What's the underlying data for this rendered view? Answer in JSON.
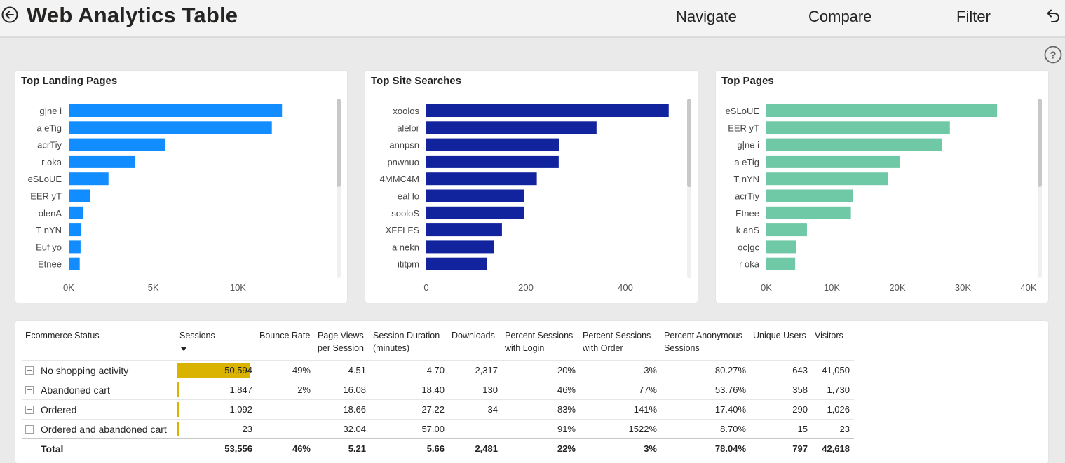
{
  "header": {
    "title": "Web Analytics Table",
    "nav": [
      "Navigate",
      "Compare",
      "Filter"
    ]
  },
  "colors": {
    "landing": "#118dff",
    "searches": "#12239e",
    "pages": "#6fc8a6",
    "sessions_bar": "#d9b300"
  },
  "chart_data": [
    {
      "type": "bar",
      "orientation": "horizontal",
      "title": "Top Landing Pages",
      "categories": [
        "g|ne i",
        "a eTig",
        "acrTiy",
        "r oka",
        "eSLoUE",
        "EER yT",
        "olenA",
        "T nYN",
        "Euf yo",
        "Etnee"
      ],
      "values": [
        12600,
        12000,
        5700,
        3900,
        2350,
        1250,
        850,
        750,
        700,
        650
      ],
      "xlim": [
        0,
        14000
      ],
      "xticks": [
        0,
        5000,
        10000
      ],
      "xtick_labels": [
        "0K",
        "5K",
        "10K"
      ]
    },
    {
      "type": "bar",
      "orientation": "horizontal",
      "title": "Top Site Searches",
      "categories": [
        "xoolos",
        "alelor",
        "annpsn",
        "pnwnuo",
        "4MMC4M",
        "eal lo",
        "sooloS",
        "XFFLFS",
        "a nekn",
        "ititpm"
      ],
      "values": [
        487,
        342,
        267,
        266,
        222,
        197,
        197,
        152,
        136,
        122
      ],
      "xlim": [
        0,
        500
      ],
      "xticks": [
        0,
        200,
        400
      ],
      "xtick_labels": [
        "0",
        "200",
        "400"
      ]
    },
    {
      "type": "bar",
      "orientation": "horizontal",
      "title": "Top Pages",
      "categories": [
        "eSLoUE",
        "EER yT",
        "g|ne i",
        "a eTig",
        "T nYN",
        "acrTiy",
        "Etnee",
        "k anS",
        "oc|gc",
        "r oka"
      ],
      "values": [
        35200,
        28000,
        26800,
        20400,
        18500,
        13200,
        12900,
        6200,
        4600,
        4400
      ],
      "xlim": [
        0,
        40000
      ],
      "xticks": [
        0,
        10000,
        20000,
        30000,
        40000
      ],
      "xtick_labels": [
        "0K",
        "10K",
        "20K",
        "30K",
        "40K"
      ]
    }
  ],
  "table": {
    "headers": [
      "Ecommerce Status",
      "Sessions",
      "Bounce Rate",
      "Page Views per Session",
      "Session Duration (minutes)",
      "Downloads",
      "Percent Sessions with Login",
      "Percent Sessions with Order",
      "Percent Anonymous Sessions",
      "Unique Users",
      "Visitors"
    ],
    "sessions_max": 50594,
    "rows": [
      {
        "name": "No shopping activity",
        "sessions": "50,594",
        "sessions_n": 50594,
        "bounce": "49%",
        "pv": "4.51",
        "dur": "4.70",
        "dl": "2,317",
        "login": "20%",
        "order": "3%",
        "anon": "80.27%",
        "uu": "643",
        "vis": "41,050"
      },
      {
        "name": "Abandoned cart",
        "sessions": "1,847",
        "sessions_n": 1847,
        "bounce": "2%",
        "pv": "16.08",
        "dur": "18.40",
        "dl": "130",
        "login": "46%",
        "order": "77%",
        "anon": "53.76%",
        "uu": "358",
        "vis": "1,730"
      },
      {
        "name": "Ordered",
        "sessions": "1,092",
        "sessions_n": 1092,
        "bounce": "",
        "pv": "18.66",
        "dur": "27.22",
        "dl": "34",
        "login": "83%",
        "order": "141%",
        "anon": "17.40%",
        "uu": "290",
        "vis": "1,026"
      },
      {
        "name": "Ordered and abandoned cart",
        "sessions": "23",
        "sessions_n": 23,
        "bounce": "",
        "pv": "32.04",
        "dur": "57.00",
        "dl": "",
        "login": "91%",
        "order": "1522%",
        "anon": "8.70%",
        "uu": "15",
        "vis": "23"
      }
    ],
    "total": {
      "name": "Total",
      "sessions": "53,556",
      "bounce": "46%",
      "pv": "5.21",
      "dur": "5.66",
      "dl": "2,481",
      "login": "22%",
      "order": "3%",
      "anon": "78.04%",
      "uu": "797",
      "vis": "42,618"
    }
  }
}
